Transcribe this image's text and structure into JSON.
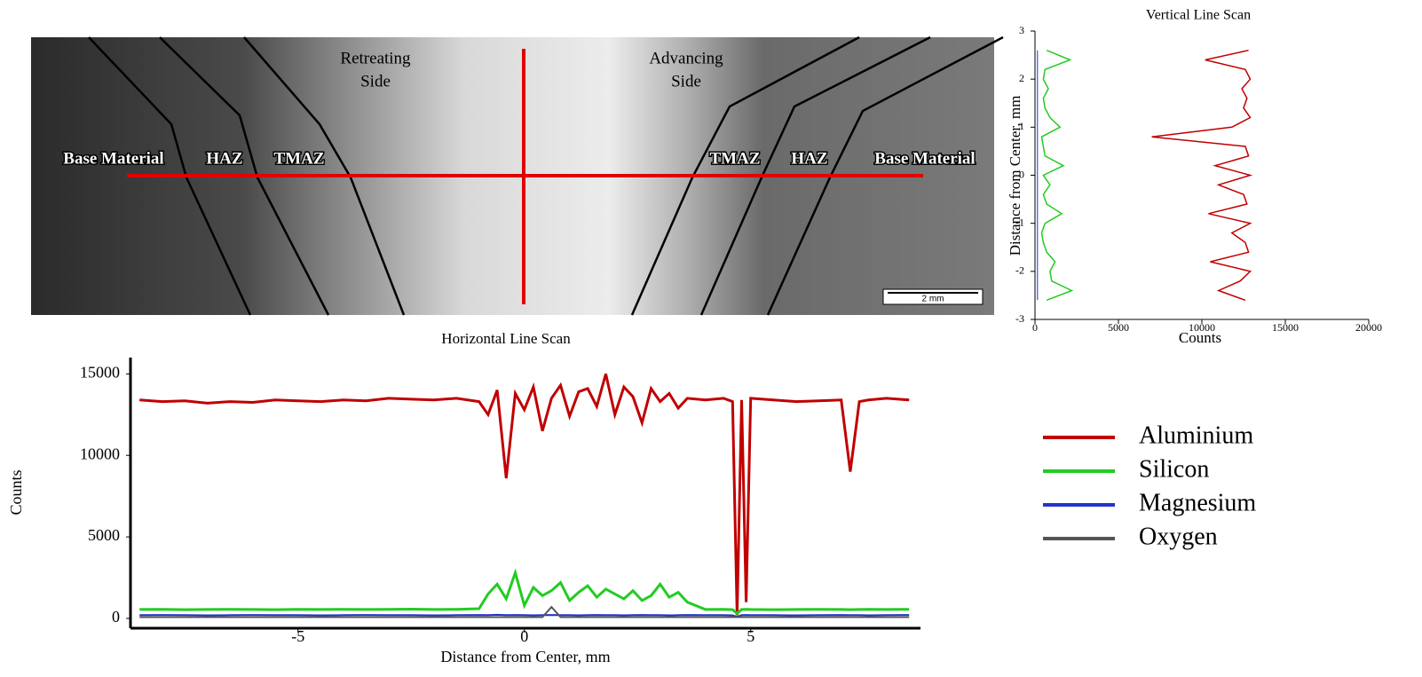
{
  "micrograph": {
    "side_labels": [
      [
        "Retreating",
        "Side"
      ],
      [
        "Advancing",
        "Side"
      ]
    ],
    "zone_labels": [
      "Base Material",
      "HAZ",
      "TMAZ",
      "TMAZ",
      "HAZ",
      "Base Material"
    ],
    "scale_bar": "2 mm"
  },
  "chart_data": [
    {
      "type": "line",
      "title": "Horizontal Line Scan",
      "xlabel": "Distance from Center, mm",
      "ylabel": "Counts",
      "xlim": [
        -8.7,
        8.75
      ],
      "xticks": [
        -5,
        0,
        5
      ],
      "ylim": [
        -600,
        16000
      ],
      "yticks": [
        0,
        5000,
        10000,
        15000
      ],
      "legend": "right",
      "x": [
        -8.5,
        -8,
        -7.5,
        -7,
        -6.5,
        -6,
        -5.5,
        -5,
        -4.5,
        -4,
        -3.5,
        -3,
        -2.5,
        -2,
        -1.5,
        -1,
        -0.8,
        -0.6,
        -0.4,
        -0.2,
        0,
        0.2,
        0.4,
        0.6,
        0.8,
        1,
        1.2,
        1.4,
        1.6,
        1.8,
        2,
        2.2,
        2.4,
        2.6,
        2.8,
        3,
        3.2,
        3.4,
        3.6,
        4,
        4.4,
        4.6,
        4.7,
        4.8,
        4.9,
        5,
        5.5,
        6,
        6.5,
        7,
        7.2,
        7.4,
        7.6,
        8,
        8.5
      ],
      "series": [
        {
          "name": "Aluminium",
          "color": "#c00000",
          "values": [
            13400,
            13300,
            13350,
            13200,
            13300,
            13250,
            13400,
            13350,
            13300,
            13400,
            13350,
            13500,
            13450,
            13400,
            13500,
            13300,
            12500,
            14000,
            8600,
            13800,
            12800,
            14200,
            11500,
            13500,
            14300,
            12400,
            13900,
            14100,
            13000,
            15000,
            12500,
            14200,
            13600,
            12000,
            14100,
            13300,
            13800,
            12900,
            13500,
            13400,
            13500,
            13300,
            200,
            13400,
            1000,
            13500,
            13400,
            13300,
            13350,
            13400,
            9000,
            13300,
            13400,
            13500,
            13400
          ]
        },
        {
          "name": "Silicon",
          "color": "#22cc22",
          "values": [
            550,
            560,
            540,
            550,
            560,
            550,
            540,
            560,
            550,
            560,
            550,
            560,
            570,
            550,
            560,
            600,
            1500,
            2100,
            1200,
            2800,
            800,
            1900,
            1400,
            1700,
            2200,
            1100,
            1600,
            2000,
            1300,
            1800,
            1500,
            1200,
            1700,
            1100,
            1400,
            2100,
            1300,
            1600,
            1000,
            550,
            560,
            540,
            300,
            550,
            560,
            550,
            540,
            550,
            560,
            550,
            540,
            550,
            560,
            550,
            560
          ]
        },
        {
          "name": "Magnesium",
          "color": "#2233cc",
          "values": [
            200,
            210,
            200,
            190,
            200,
            210,
            200,
            200,
            190,
            200,
            210,
            200,
            200,
            190,
            200,
            210,
            200,
            220,
            200,
            210,
            200,
            190,
            200,
            210,
            200,
            200,
            190,
            200,
            210,
            200,
            200,
            190,
            200,
            210,
            200,
            200,
            190,
            200,
            210,
            200,
            200,
            190,
            100,
            200,
            210,
            200,
            200,
            190,
            200,
            210,
            200,
            200,
            190,
            200,
            210
          ]
        },
        {
          "name": "Oxygen",
          "color": "#555555",
          "values": [
            80,
            80,
            80,
            80,
            80,
            80,
            80,
            80,
            80,
            80,
            80,
            80,
            80,
            80,
            80,
            80,
            80,
            80,
            80,
            80,
            80,
            80,
            80,
            700,
            80,
            80,
            80,
            80,
            80,
            80,
            80,
            80,
            80,
            80,
            80,
            80,
            80,
            80,
            80,
            80,
            80,
            80,
            80,
            80,
            80,
            80,
            80,
            80,
            80,
            80,
            80,
            80,
            80,
            80,
            80
          ]
        }
      ]
    },
    {
      "type": "line",
      "title": "Vertical Line Scan",
      "xlabel": "Counts",
      "ylabel": "Distance from Center, mm",
      "xlim": [
        0,
        20000
      ],
      "xticks": [
        0,
        5000,
        10000,
        15000,
        20000
      ],
      "ylim": [
        -3,
        3
      ],
      "yticks": [
        -3,
        -2,
        -1,
        0,
        1,
        2,
        3
      ],
      "y": [
        2.6,
        2.4,
        2.2,
        2.0,
        1.8,
        1.6,
        1.4,
        1.2,
        1.0,
        0.8,
        0.6,
        0.4,
        0.2,
        0,
        -0.2,
        -0.4,
        -0.6,
        -0.8,
        -1.0,
        -1.2,
        -1.4,
        -1.6,
        -1.8,
        -2.0,
        -2.2,
        -2.4,
        -2.6
      ],
      "series": [
        {
          "color": "#c00000",
          "values": [
            12800,
            10200,
            12600,
            12900,
            12400,
            12700,
            12500,
            12900,
            11800,
            7000,
            12600,
            12800,
            10800,
            12900,
            11000,
            12500,
            12700,
            10400,
            12900,
            11800,
            12600,
            12800,
            10500,
            12900,
            12300,
            11000,
            12600
          ]
        },
        {
          "color": "#22cc22",
          "values": [
            700,
            2100,
            600,
            500,
            800,
            500,
            600,
            900,
            1500,
            400,
            500,
            600,
            1700,
            500,
            900,
            500,
            700,
            1600,
            600,
            400,
            500,
            700,
            1200,
            900,
            1000,
            2200,
            700
          ]
        },
        {
          "color": "#2233cc",
          "values": [
            150,
            150,
            150,
            150,
            150,
            150,
            150,
            150,
            150,
            150,
            150,
            150,
            150,
            150,
            150,
            150,
            150,
            150,
            150,
            150,
            150,
            150,
            150,
            150,
            150,
            150,
            150
          ]
        }
      ]
    }
  ]
}
